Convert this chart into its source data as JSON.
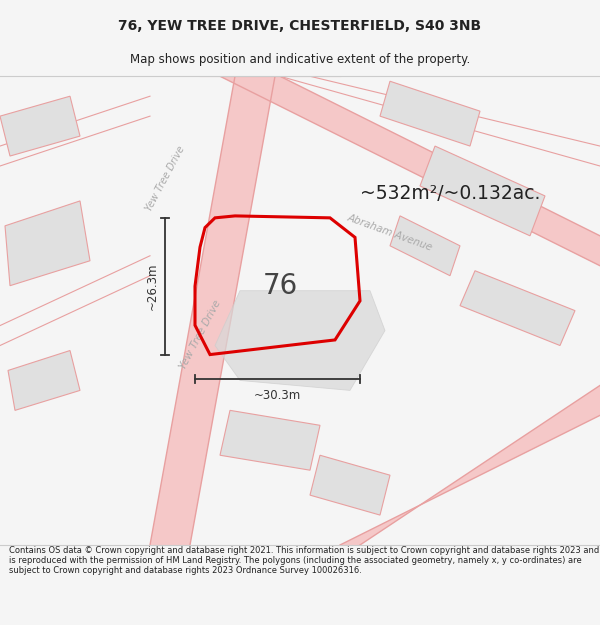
{
  "title_line1": "76, YEW TREE DRIVE, CHESTERFIELD, S40 3NB",
  "title_line2": "Map shows position and indicative extent of the property.",
  "area_text": "~532m²/~0.132ac.",
  "number_label": "76",
  "dim_horiz": "~30.3m",
  "dim_vert": "~26.3m",
  "footer_text": "Contains OS data © Crown copyright and database right 2021. This information is subject to Crown copyright and database rights 2023 and is reproduced with the permission of HM Land Registry. The polygons (including the associated geometry, namely x, y co-ordinates) are subject to Crown copyright and database rights 2023 Ordnance Survey 100026316.",
  "bg_color": "#f5f5f5",
  "map_bg": "#ffffff",
  "road_line_color": "#e8a0a0",
  "plot_fill": "#e8e8e8",
  "plot_stroke": "#dd0000",
  "building_fill": "#e0e0e0",
  "building_stroke": "#c8c8c8",
  "road_label_color": "#aaaaaa",
  "title_color": "#222222",
  "footer_color": "#222222",
  "dim_color": "#333333",
  "road_road_fill": "#f0f0f0",
  "road_thick_fill": "#f5c8c8"
}
